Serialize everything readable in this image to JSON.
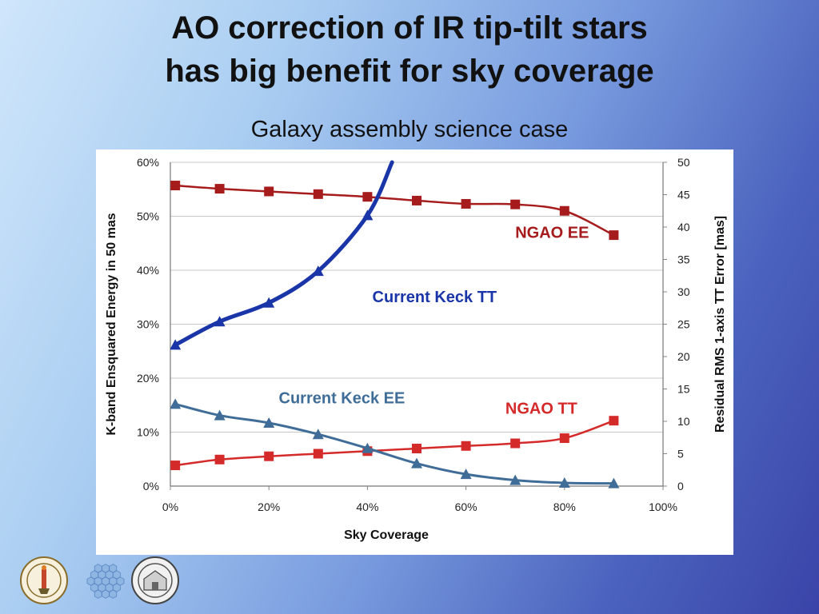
{
  "slide": {
    "title_line1": "AO correction of IR tip-tilt stars",
    "title_line2": "has big benefit for sky coverage",
    "subtitle": "Galaxy assembly science case"
  },
  "logos": [
    "caltech-seal",
    "keck-segmented-mirror",
    "university-of-california-seal"
  ],
  "colors": {
    "ngao": "#a61c1c",
    "ngao_ee": "#a61c1c",
    "ngao_tt": "#d42a2a",
    "keck_tt": "#1a35a8",
    "keck_ee": "#3f6d98"
  },
  "chart_data": {
    "type": "line",
    "xlabel": "Sky Coverage",
    "ylabel_left": "K-band Ensquared Energy  in 50 mas",
    "ylabel_right": "Residual RMS 1-axis TT Error [mas]",
    "xlim": [
      0,
      100
    ],
    "ylim_left": [
      0,
      60
    ],
    "ylim_right": [
      0,
      50
    ],
    "x_ticks": [
      "0%",
      "20%",
      "40%",
      "60%",
      "80%",
      "100%"
    ],
    "y_left_ticks": [
      "0%",
      "10%",
      "20%",
      "30%",
      "40%",
      "50%",
      "60%"
    ],
    "y_right_ticks": [
      "0",
      "5",
      "10",
      "15",
      "20",
      "25",
      "30",
      "35",
      "40",
      "45",
      "50"
    ],
    "grid": true,
    "series": [
      {
        "name": "NGAO EE",
        "axis": "left",
        "marker": "square",
        "color": "#a61c1c",
        "width": 2.5,
        "label_pos": [
          70,
          46
        ],
        "x": [
          1,
          10,
          20,
          30,
          40,
          50,
          60,
          70,
          80,
          90
        ],
        "y": [
          55.7,
          55.1,
          54.6,
          54.1,
          53.6,
          52.9,
          52.3,
          52.2,
          51.0,
          46.5
        ]
      },
      {
        "name": "NGAO TT",
        "axis": "right",
        "marker": "square",
        "color": "#d42a2a",
        "width": 2.5,
        "label_pos": [
          68,
          11.2
        ],
        "x": [
          1,
          10,
          20,
          30,
          40,
          50,
          60,
          70,
          80,
          90
        ],
        "y": [
          3.2,
          4.1,
          4.6,
          5.0,
          5.4,
          5.8,
          6.2,
          6.6,
          7.4,
          10.1
        ]
      },
      {
        "name": "Current Keck TT",
        "axis": "right",
        "marker": "triangle",
        "color": "#1a35a8",
        "width": 5,
        "label_pos": [
          41,
          28.4
        ],
        "x": [
          1,
          10,
          20,
          30,
          40,
          45
        ],
        "y": [
          21.8,
          25.4,
          28.3,
          33.2,
          41.8,
          50
        ]
      },
      {
        "name": "Current Keck EE",
        "axis": "left",
        "marker": "triangle",
        "color": "#3f6d98",
        "width": 3,
        "label_pos": [
          22,
          15.3
        ],
        "x": [
          1,
          10,
          20,
          30,
          40,
          50,
          60,
          70,
          80,
          90
        ],
        "y": [
          15.2,
          13.1,
          11.7,
          9.6,
          7.0,
          4.2,
          2.2,
          1.1,
          0.6,
          0.5
        ]
      }
    ]
  }
}
